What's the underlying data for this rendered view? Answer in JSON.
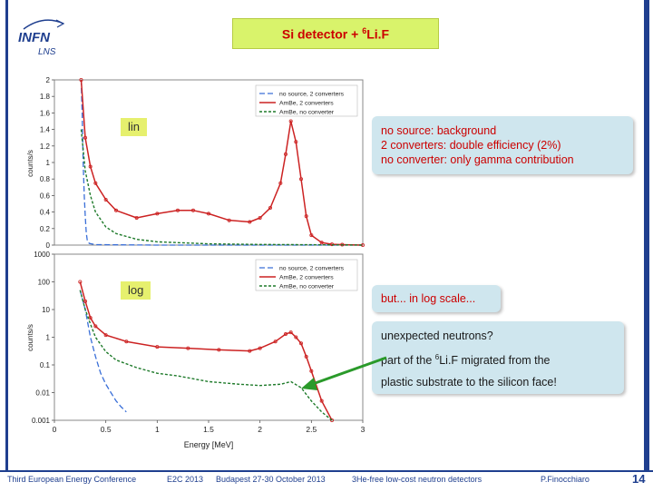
{
  "slide": {
    "title_prefix": "Si detector + ",
    "title_sup": "6",
    "title_suffix": "Li.F",
    "logo_top": "INFN",
    "logo_bottom": "LNS",
    "lin_label": "lin",
    "log_label": "log",
    "note1": [
      "no source: background",
      "2 converters: double efficiency (2%)",
      "no converter: only gamma contribution"
    ],
    "note2": "but... in log scale...",
    "note3_line1": "unexpected neutrons?",
    "note3_line2_prefix": "part of the ",
    "note3_line2_sup": "6",
    "note3_line2_suffix": "Li.F migrated from the",
    "note3_line3": "plastic substrate to the silicon face!",
    "footer": {
      "conference": "Third European Energy Conference",
      "acronym": "E2C 2013",
      "place_date": "Budapest 27-30 October 2013",
      "topic": "3He-free low-cost neutron detectors",
      "author": "P.Finocchiaro",
      "page": "14"
    }
  },
  "colors": {
    "nosource": "#3a6fd8",
    "two_conv": "#cc2222",
    "no_conv": "#1e7a2a",
    "accent_box": "#d9f36b",
    "note_bg": "#cfe6ee",
    "arrow": "#2a9a2a"
  },
  "chart_data": [
    {
      "type": "line",
      "scale": "linear",
      "ylabel": "counts/s",
      "xlim": [
        0,
        3
      ],
      "ylim": [
        0,
        2
      ],
      "yticks": [
        "0",
        "0.2",
        "0.4",
        "0.6",
        "0.8",
        "1",
        "1.2",
        "1.4",
        "1.6",
        "1.8",
        "2"
      ],
      "legend": [
        "no source, 2 converters",
        "AmBe, 2 converters",
        "AmBe, no converter"
      ],
      "legend_position": "top-right",
      "series": [
        {
          "name": "no source, 2 converters",
          "x": [
            0.26,
            0.27,
            0.28,
            0.29,
            0.3,
            0.31,
            0.32,
            0.34,
            0.4,
            1.0,
            2.0,
            3.0
          ],
          "y": [
            2.0,
            1.6,
            1.0,
            0.6,
            0.35,
            0.15,
            0.05,
            0.02,
            0.005,
            0.0,
            0.0,
            0.0
          ]
        },
        {
          "name": "AmBe, 2 converters",
          "x": [
            0.26,
            0.3,
            0.35,
            0.4,
            0.5,
            0.6,
            0.8,
            1.0,
            1.2,
            1.35,
            1.5,
            1.7,
            1.9,
            2.0,
            2.1,
            2.2,
            2.25,
            2.3,
            2.35,
            2.4,
            2.45,
            2.5,
            2.6,
            2.7,
            2.8,
            3.0
          ],
          "y": [
            2.0,
            1.3,
            0.95,
            0.75,
            0.55,
            0.42,
            0.33,
            0.38,
            0.42,
            0.42,
            0.38,
            0.3,
            0.28,
            0.33,
            0.45,
            0.75,
            1.1,
            1.5,
            1.25,
            0.8,
            0.35,
            0.12,
            0.03,
            0.01,
            0.005,
            0.0
          ]
        },
        {
          "name": "AmBe, no converter",
          "x": [
            0.26,
            0.3,
            0.35,
            0.4,
            0.5,
            0.6,
            0.8,
            1.0,
            1.5,
            2.0,
            2.5,
            3.0
          ],
          "y": [
            1.4,
            0.9,
            0.6,
            0.4,
            0.22,
            0.14,
            0.07,
            0.04,
            0.015,
            0.008,
            0.004,
            0.0
          ]
        }
      ]
    },
    {
      "type": "line",
      "scale": "log",
      "ylabel": "counts/s",
      "xlabel": "Energy [MeV]",
      "xlim": [
        0,
        3
      ],
      "ylim": [
        0.001,
        1000
      ],
      "xticks": [
        "0",
        "0.5",
        "1",
        "1.5",
        "2",
        "2.5",
        "3"
      ],
      "yticks": [
        "0.001",
        "0.01",
        "0.1",
        "1",
        "10",
        "100",
        "1000"
      ],
      "legend": [
        "no source, 2 converters",
        "AmBe, 2 converters",
        "AmBe, no converter"
      ],
      "legend_position": "top-right",
      "series": [
        {
          "name": "no source, 2 converters",
          "x": [
            0.25,
            0.3,
            0.35,
            0.4,
            0.45,
            0.5,
            0.55,
            0.6,
            0.65,
            0.7
          ],
          "y": [
            50,
            10,
            1.0,
            0.2,
            0.05,
            0.02,
            0.01,
            0.005,
            0.003,
            0.002
          ]
        },
        {
          "name": "AmBe, 2 converters",
          "x": [
            0.25,
            0.3,
            0.35,
            0.4,
            0.5,
            0.7,
            1.0,
            1.3,
            1.6,
            1.9,
            2.0,
            2.15,
            2.25,
            2.3,
            2.35,
            2.4,
            2.45,
            2.5,
            2.6,
            2.7
          ],
          "y": [
            100,
            20,
            5.0,
            2.5,
            1.2,
            0.7,
            0.45,
            0.4,
            0.35,
            0.32,
            0.4,
            0.7,
            1.3,
            1.5,
            1.0,
            0.6,
            0.2,
            0.06,
            0.005,
            0.001
          ]
        },
        {
          "name": "AmBe, no converter",
          "x": [
            0.25,
            0.3,
            0.35,
            0.4,
            0.5,
            0.6,
            0.8,
            1.0,
            1.2,
            1.5,
            1.8,
            2.0,
            2.2,
            2.3,
            2.4,
            2.5,
            2.6,
            2.7
          ],
          "y": [
            50,
            10,
            3.0,
            1.0,
            0.3,
            0.15,
            0.08,
            0.05,
            0.04,
            0.025,
            0.02,
            0.018,
            0.02,
            0.025,
            0.015,
            0.005,
            0.002,
            0.001
          ]
        }
      ]
    }
  ]
}
